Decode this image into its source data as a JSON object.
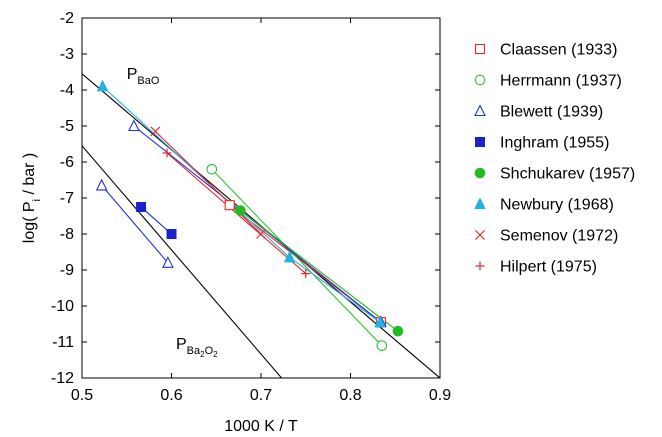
{
  "chart_data": {
    "type": "line",
    "xlabel": "1000 K / T",
    "ylabel": "log( P_i / bar )",
    "xlim": [
      0.5,
      0.9
    ],
    "ylim": [
      -12,
      -2
    ],
    "xticks": [
      "0.5",
      "0.6",
      "0.7",
      "0.8",
      "0.9"
    ],
    "yticks": [
      "-2",
      "-3",
      "-4",
      "-5",
      "-6",
      "-7",
      "-8",
      "-9",
      "-10",
      "-11",
      "-12"
    ],
    "grid": false,
    "legend_position": "right",
    "annotations": [
      {
        "main": "P",
        "sub": "BaO",
        "x": 0.55,
        "y": -3.7
      },
      {
        "main": "P",
        "sub": "Ba2O2",
        "x": 0.605,
        "y": -11.2
      }
    ],
    "reference_lines": [
      {
        "x": [
          0.5,
          0.9
        ],
        "y": [
          -3.55,
          -12.0
        ],
        "color": "#000000"
      },
      {
        "x": [
          0.5,
          0.723
        ],
        "y": [
          -5.55,
          -12.0
        ],
        "color": "#000000"
      }
    ],
    "series": [
      {
        "name": "Claassen (1933)",
        "color": "#e8282b",
        "marker": "square-open",
        "x": [
          0.665,
          0.834
        ],
        "y": [
          -7.2,
          -10.45
        ]
      },
      {
        "name": "Herrmann (1937)",
        "color": "#2fc32f",
        "marker": "circle-open",
        "x": [
          0.645,
          0.835
        ],
        "y": [
          -6.2,
          -11.1
        ]
      },
      {
        "name": "Blewett (1939)",
        "color": "#2233d6",
        "marker": "triangle-open",
        "x": [
          0.558,
          0.834
        ],
        "y": [
          -5.0,
          -10.45
        ]
      },
      {
        "name": "Blewett (1939)",
        "color": "#2233d6",
        "marker": "triangle-open",
        "x": [
          0.522,
          0.596
        ],
        "y": [
          -6.65,
          -8.8
        ]
      },
      {
        "name": "Inghram (1955)",
        "color": "#1b21cc",
        "marker": "square-filled",
        "x": [
          0.566,
          0.6
        ],
        "y": [
          -7.25,
          -8.0
        ]
      },
      {
        "name": "Shchukarev (1957)",
        "color": "#22bb22",
        "marker": "circle-filled",
        "x": [
          0.677,
          0.853
        ],
        "y": [
          -7.35,
          -10.7
        ]
      },
      {
        "name": "Newbury (1968)",
        "color": "#1fb3e0",
        "marker": "triangle-filled",
        "x": [
          0.523,
          0.732,
          0.833
        ],
        "y": [
          -3.9,
          -8.65,
          -10.45
        ]
      },
      {
        "name": "Semenov (1972)",
        "color": "#e8282b",
        "marker": "x",
        "x": [
          0.582,
          0.7
        ],
        "y": [
          -5.15,
          -8.0
        ]
      },
      {
        "name": "Hilpert (1975)",
        "color": "#e8282b",
        "marker": "plus",
        "x": [
          0.595,
          0.75
        ],
        "y": [
          -5.75,
          -9.1
        ]
      }
    ],
    "legend": [
      {
        "label": "Claassen (1933)",
        "color": "#e8282b",
        "marker": "square-open"
      },
      {
        "label": "Herrmann (1937)",
        "color": "#2fc32f",
        "marker": "circle-open"
      },
      {
        "label": "Blewett (1939)",
        "color": "#2233d6",
        "marker": "triangle-open"
      },
      {
        "label": "Inghram (1955)",
        "color": "#1b21cc",
        "marker": "square-filled"
      },
      {
        "label": "Shchukarev (1957)",
        "color": "#22bb22",
        "marker": "circle-filled"
      },
      {
        "label": "Newbury (1968)",
        "color": "#1fb3e0",
        "marker": "triangle-filled"
      },
      {
        "label": "Semenov (1972)",
        "color": "#e8282b",
        "marker": "x"
      },
      {
        "label": "Hilpert (1975)",
        "color": "#e8282b",
        "marker": "plus"
      }
    ]
  }
}
